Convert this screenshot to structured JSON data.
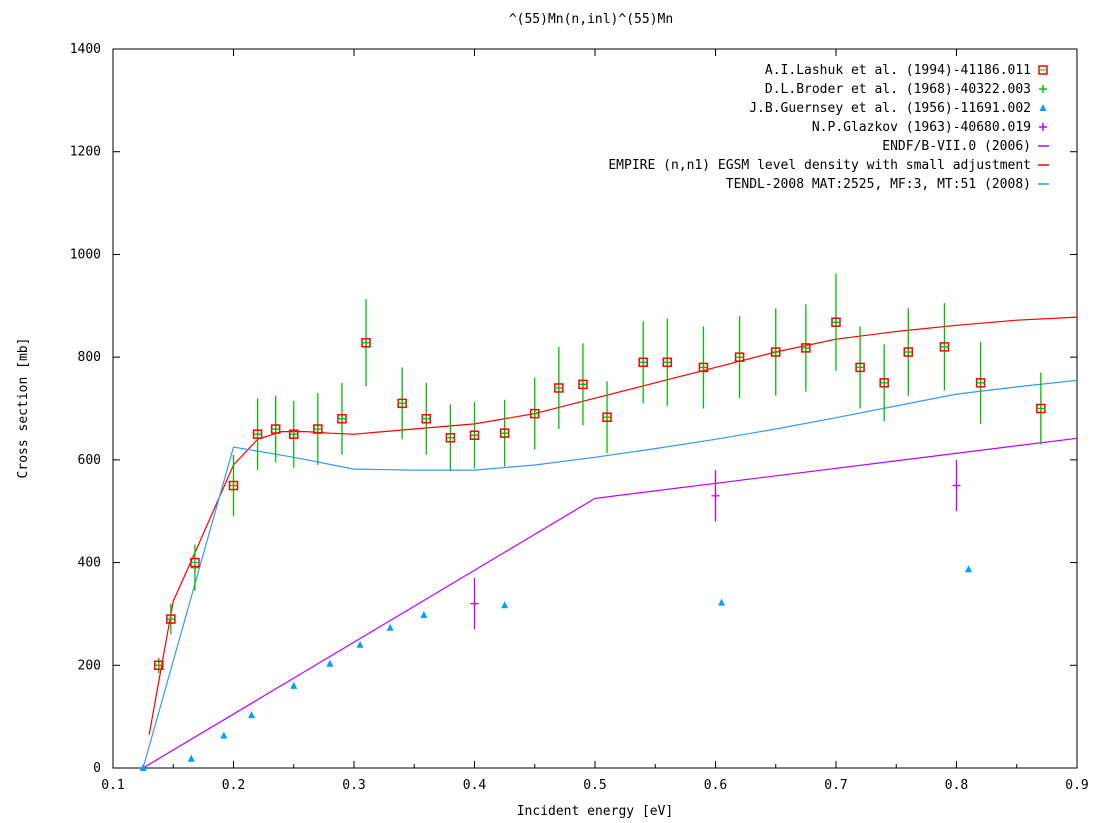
{
  "chart_data": {
    "type": "scatter",
    "title": "^(55)Mn(n,inl)^(55)Mn",
    "xlabel": "Incident energy [eV]",
    "ylabel": "Cross section [mb]",
    "xlim": [
      0.1,
      0.9
    ],
    "ylim": [
      0,
      1400
    ],
    "xticks": [
      "0.1",
      "0.2",
      "0.3",
      "0.4",
      "0.5",
      "0.6",
      "0.7",
      "0.8",
      "0.9"
    ],
    "yticks": [
      "0",
      "200",
      "400",
      "600",
      "800",
      "1000",
      "1200",
      "1400"
    ],
    "legend_position": "top-right",
    "grid": false,
    "series": [
      {
        "name": "A.I.Lashuk et al. (1994)-41186.011",
        "kind": "points",
        "marker": "square",
        "color": "#ff0000",
        "points": [
          [
            0.138,
            200
          ],
          [
            0.148,
            290
          ],
          [
            0.168,
            400
          ],
          [
            0.2,
            550
          ],
          [
            0.22,
            650
          ],
          [
            0.235,
            660
          ],
          [
            0.25,
            650
          ],
          [
            0.27,
            660
          ],
          [
            0.29,
            680
          ],
          [
            0.31,
            828
          ],
          [
            0.34,
            710
          ],
          [
            0.36,
            680
          ],
          [
            0.38,
            643
          ],
          [
            0.4,
            648
          ],
          [
            0.425,
            652
          ],
          [
            0.45,
            690
          ],
          [
            0.47,
            740
          ],
          [
            0.49,
            747
          ],
          [
            0.51,
            683
          ],
          [
            0.54,
            790
          ],
          [
            0.56,
            790
          ],
          [
            0.59,
            780
          ],
          [
            0.62,
            800
          ],
          [
            0.65,
            810
          ],
          [
            0.675,
            818
          ],
          [
            0.7,
            868
          ],
          [
            0.72,
            780
          ],
          [
            0.74,
            750
          ],
          [
            0.76,
            810
          ],
          [
            0.79,
            820
          ],
          [
            0.82,
            750
          ],
          [
            0.87,
            700
          ]
        ]
      },
      {
        "name": "D.L.Broder et al. (1968)-40322.003",
        "kind": "points",
        "marker": "plus-errorbar",
        "color": "#00c000",
        "points": [
          [
            0.138,
            200,
            15
          ],
          [
            0.148,
            290,
            30
          ],
          [
            0.168,
            390,
            45
          ],
          [
            0.2,
            550,
            60
          ],
          [
            0.22,
            650,
            70
          ],
          [
            0.235,
            660,
            65
          ],
          [
            0.25,
            650,
            65
          ],
          [
            0.27,
            660,
            70
          ],
          [
            0.29,
            680,
            70
          ],
          [
            0.31,
            828,
            85
          ],
          [
            0.34,
            710,
            70
          ],
          [
            0.36,
            680,
            70
          ],
          [
            0.38,
            643,
            65
          ],
          [
            0.4,
            648,
            65
          ],
          [
            0.425,
            652,
            65
          ],
          [
            0.45,
            690,
            70
          ],
          [
            0.47,
            740,
            80
          ],
          [
            0.49,
            747,
            80
          ],
          [
            0.51,
            683,
            70
          ],
          [
            0.54,
            790,
            80
          ],
          [
            0.56,
            790,
            85
          ],
          [
            0.59,
            780,
            80
          ],
          [
            0.62,
            800,
            80
          ],
          [
            0.65,
            810,
            85
          ],
          [
            0.675,
            818,
            85
          ],
          [
            0.7,
            868,
            95
          ],
          [
            0.72,
            780,
            80
          ],
          [
            0.74,
            750,
            75
          ],
          [
            0.76,
            810,
            85
          ],
          [
            0.79,
            820,
            85
          ],
          [
            0.82,
            750,
            80
          ],
          [
            0.87,
            700,
            70
          ]
        ]
      },
      {
        "name": "J.B.Guernsey et al. (1956)-11691.002",
        "kind": "points",
        "marker": "triangle",
        "color": "#00a0ff",
        "points": [
          [
            0.125,
            0
          ],
          [
            0.165,
            18
          ],
          [
            0.192,
            63
          ],
          [
            0.215,
            103
          ],
          [
            0.25,
            160
          ],
          [
            0.28,
            203
          ],
          [
            0.305,
            240
          ],
          [
            0.33,
            273
          ],
          [
            0.358,
            298
          ],
          [
            0.425,
            317
          ],
          [
            0.605,
            322
          ],
          [
            0.81,
            387
          ]
        ]
      },
      {
        "name": "N.P.Glazkov (1963)-40680.019",
        "kind": "points",
        "marker": "plus-errorbar",
        "color": "#c000ff",
        "points": [
          [
            0.4,
            320,
            50
          ],
          [
            0.6,
            530,
            50
          ],
          [
            0.8,
            550,
            50
          ]
        ]
      },
      {
        "name": "ENDF/B-VII.0 (2006)",
        "kind": "line",
        "color": "#c000ff",
        "points": [
          [
            0.125,
            0
          ],
          [
            0.5,
            525
          ],
          [
            0.9,
            642
          ]
        ]
      },
      {
        "name": "EMPIRE (n,n1) EGSM level density with small adjustment",
        "kind": "line",
        "color": "#ff0000",
        "points": [
          [
            0.13,
            65
          ],
          [
            0.15,
            325
          ],
          [
            0.17,
            430
          ],
          [
            0.2,
            590
          ],
          [
            0.22,
            640
          ],
          [
            0.24,
            655
          ],
          [
            0.26,
            655
          ],
          [
            0.28,
            652
          ],
          [
            0.3,
            650
          ],
          [
            0.35,
            660
          ],
          [
            0.4,
            670
          ],
          [
            0.45,
            690
          ],
          [
            0.5,
            720
          ],
          [
            0.55,
            750
          ],
          [
            0.6,
            780
          ],
          [
            0.65,
            810
          ],
          [
            0.7,
            835
          ],
          [
            0.75,
            850
          ],
          [
            0.8,
            862
          ],
          [
            0.85,
            872
          ],
          [
            0.9,
            878
          ]
        ]
      },
      {
        "name": "TENDL-2008 MAT:2525, MF:3, MT:51 (2008)",
        "kind": "line",
        "color": "#3399ff",
        "points": [
          [
            0.125,
            0
          ],
          [
            0.2,
            625
          ],
          [
            0.25,
            605
          ],
          [
            0.3,
            582
          ],
          [
            0.35,
            580
          ],
          [
            0.4,
            580
          ],
          [
            0.45,
            590
          ],
          [
            0.5,
            605
          ],
          [
            0.55,
            622
          ],
          [
            0.6,
            640
          ],
          [
            0.65,
            660
          ],
          [
            0.7,
            682
          ],
          [
            0.75,
            705
          ],
          [
            0.8,
            728
          ],
          [
            0.85,
            742
          ],
          [
            0.9,
            755
          ]
        ]
      }
    ]
  }
}
